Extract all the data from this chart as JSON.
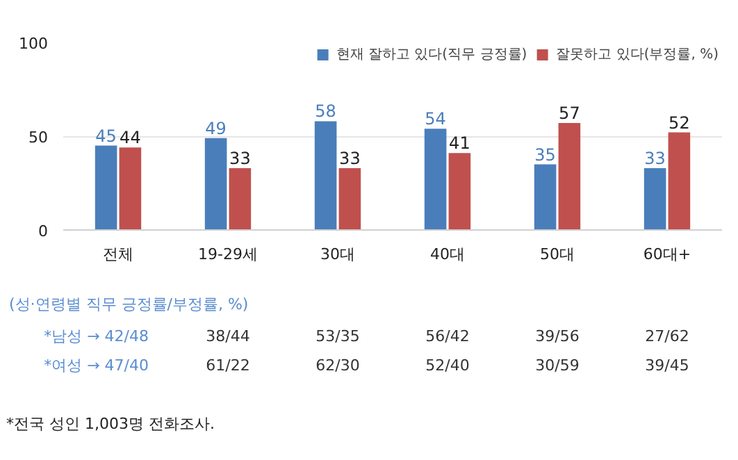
{
  "chart_data": {
    "type": "bar",
    "categories": [
      "전체",
      "19-29세",
      "30대",
      "40대",
      "50대",
      "60대+"
    ],
    "series": [
      {
        "name": "현재 잘하고 있다(직무 긍정률)",
        "color": "#4a7ebb",
        "values": [
          45,
          49,
          58,
          54,
          35,
          33
        ]
      },
      {
        "name": "잘못하고 있다(부정률, %)",
        "color": "#c0504d",
        "values": [
          44,
          33,
          33,
          41,
          57,
          52
        ]
      }
    ],
    "ylim": [
      0,
      100
    ],
    "yticks": [
      0,
      50,
      100
    ],
    "grid": "y",
    "legend": "top right",
    "data_labels": true,
    "annotations": [
      "(성·연령별 직무 긍정률/부정률, %)",
      "*남성 → 42/48",
      "38/44",
      "53/35",
      "56/42",
      "39/56",
      "27/62",
      "*여성 → 47/40",
      "61/22",
      "62/30",
      "52/40",
      "30/59",
      "39/45",
      "*전국 성인 1,003명 전화조사."
    ]
  }
}
